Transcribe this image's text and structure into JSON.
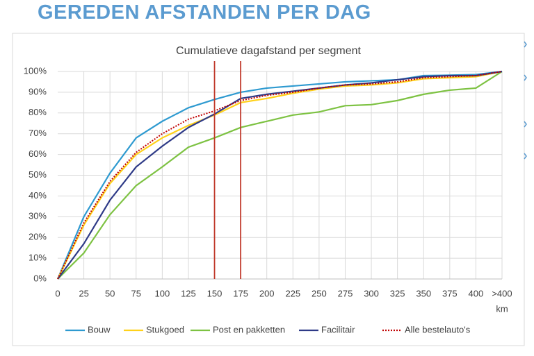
{
  "page_title": "GEREDEN AFSTANDEN PER DAG",
  "chart_data": {
    "type": "line",
    "title": "Cumulatieve dagafstand per segment",
    "x_label": "km",
    "categories": [
      "0",
      "25",
      "50",
      "75",
      "100",
      "125",
      "150",
      "175",
      "200",
      "225",
      "250",
      "275",
      "300",
      "325",
      "350",
      "375",
      "400",
      ">400"
    ],
    "vlines": [
      150,
      175
    ],
    "vline_color": "#c0392b",
    "ylim": [
      0,
      100
    ],
    "yticks": [
      {
        "value": 0,
        "label": "0%"
      },
      {
        "value": 10,
        "label": "10%"
      },
      {
        "value": 20,
        "label": "20%"
      },
      {
        "value": 30,
        "label": "30%"
      },
      {
        "value": 40,
        "label": "40%"
      },
      {
        "value": 50,
        "label": "50%"
      },
      {
        "value": 60,
        "label": "60%"
      },
      {
        "value": 70,
        "label": "70%"
      },
      {
        "value": 80,
        "label": "80%"
      },
      {
        "value": 90,
        "label": "90%"
      },
      {
        "value": 100,
        "label": "100%"
      }
    ],
    "grid": true,
    "series": [
      {
        "name": "Bouw",
        "color": "#2e9ad0",
        "style": "solid",
        "values": [
          0,
          30,
          51,
          68,
          76,
          82.5,
          86.5,
          90,
          92,
          93,
          94,
          95,
          95.5,
          96,
          98,
          98.2,
          98.5,
          100
        ]
      },
      {
        "name": "Stukgoed",
        "color": "#ffd11a",
        "style": "solid",
        "values": [
          0,
          26,
          46,
          60,
          68,
          74,
          79,
          85,
          87,
          89.5,
          91.5,
          93,
          93.5,
          94.5,
          96.5,
          97,
          97.5,
          100
        ]
      },
      {
        "name": "Post en pakketten",
        "color": "#7dc242",
        "style": "solid",
        "values": [
          0,
          12.5,
          31,
          45,
          54,
          63.5,
          68,
          73,
          76,
          79,
          80.5,
          83.5,
          84,
          86,
          89,
          91,
          92,
          100
        ]
      },
      {
        "name": "Facilitair",
        "color": "#2e3a87",
        "style": "solid",
        "values": [
          0,
          17,
          38,
          54,
          64,
          73,
          79.5,
          87,
          89,
          90.5,
          92,
          93.5,
          94.5,
          96,
          97.5,
          98,
          98,
          100
        ]
      },
      {
        "name": "Alle bestelauto's",
        "color": "#c00000",
        "style": "dotted",
        "values": [
          0,
          27,
          47,
          61,
          70,
          77,
          81,
          86,
          88.5,
          90,
          92,
          93.5,
          94,
          95,
          97,
          97.5,
          98,
          100
        ]
      }
    ]
  }
}
